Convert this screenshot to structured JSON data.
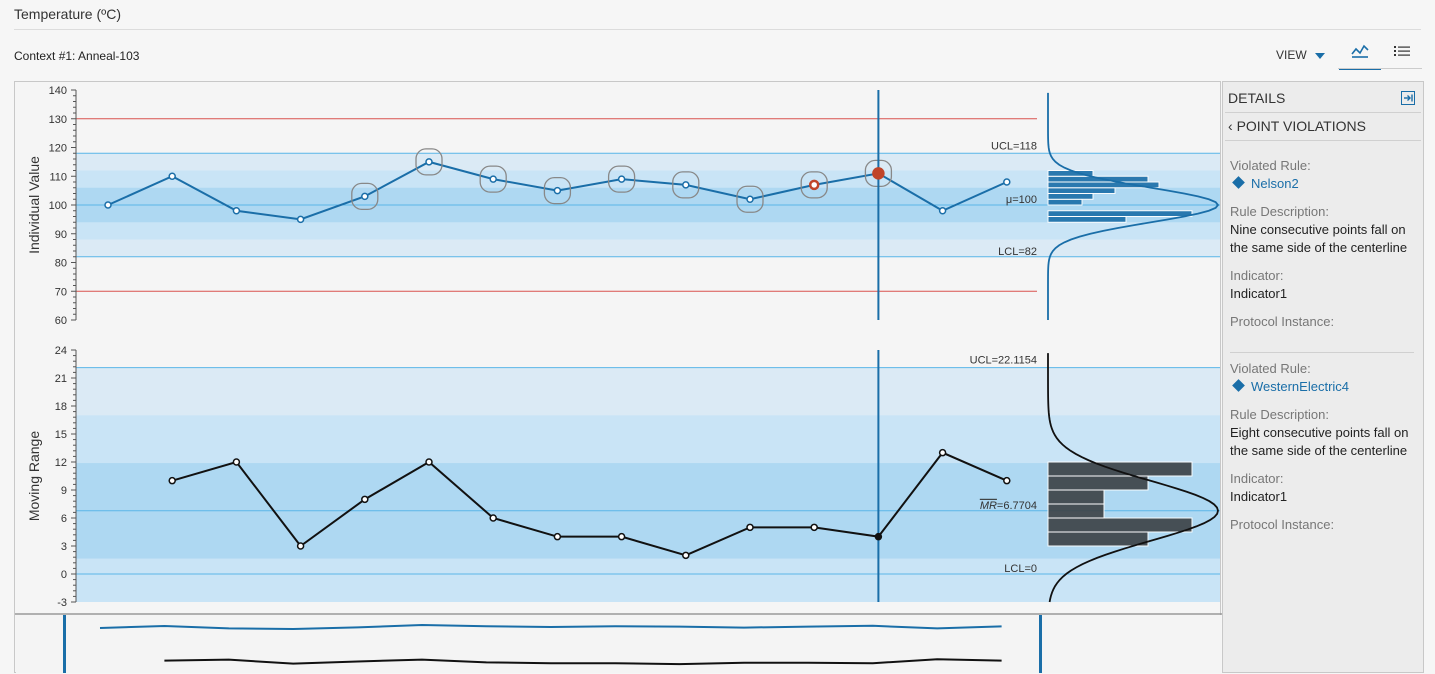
{
  "header": {
    "title": "Temperature (ºC)",
    "context": "Context #1: Anneal-103"
  },
  "toolbar": {
    "view_label": "VIEW",
    "chart_icon": "control-chart-icon",
    "list_icon": "list-icon"
  },
  "colors": {
    "accent": "#1a6ea8",
    "band_dark": "#aed8f2",
    "band_mid": "#c9e4f6",
    "band_light": "#dbeaf5",
    "line_light": "#5bb6e8",
    "spec_limit": "#d9534f",
    "violation": "#c0452a",
    "mr_hist": "#3b4145"
  },
  "details": {
    "title": "DETAILS",
    "back_label": "POINT VIOLATIONS",
    "violations": [
      {
        "violated_rule_label": "Violated Rule:",
        "rule": "Nelson2",
        "description_label": "Rule Description:",
        "description": "Nine consecutive points fall on the same side of the centerline",
        "indicator_label": "Indicator:",
        "indicator": "Indicator1",
        "protocol_label": "Protocol Instance:"
      },
      {
        "violated_rule_label": "Violated Rule:",
        "rule": "WesternElectric4",
        "description_label": "Rule Description:",
        "description": "Eight consecutive points fall on the same side of the centerline",
        "indicator_label": "Indicator:",
        "indicator": "Indicator1",
        "protocol_label": "Protocol Instance:"
      }
    ]
  },
  "chart_data": [
    {
      "type": "line",
      "ylabel": "Individual Value",
      "ylim": [
        60,
        140
      ],
      "yticks": [
        60,
        70,
        80,
        90,
        100,
        110,
        120,
        130,
        140
      ],
      "values": [
        100,
        110,
        98,
        95,
        103,
        115,
        109,
        105,
        109,
        107,
        102,
        107,
        111,
        98,
        108
      ],
      "violation_points": [
        4,
        5,
        6,
        7,
        8,
        9,
        10,
        11,
        12
      ],
      "highlighted_points": [
        11,
        12
      ],
      "selected_index": 12,
      "ucl": 118,
      "center": 100,
      "lcl": 82,
      "spec_upper": 130,
      "spec_lower": 70,
      "ucl_label": "UCL=118",
      "center_label": "μ=100",
      "lcl_label": "LCL=82",
      "hist_bins": [
        {
          "range": [
            94,
            96
          ],
          "count": 6
        },
        {
          "range": [
            96,
            98
          ],
          "count": 12
        },
        {
          "range": [
            100,
            102
          ],
          "count": 2
        },
        {
          "range": [
            102,
            104
          ],
          "count": 3
        },
        {
          "range": [
            104,
            106
          ],
          "count": 5
        },
        {
          "range": [
            106,
            108
          ],
          "count": 9
        },
        {
          "range": [
            108,
            110
          ],
          "count": 8
        },
        {
          "range": [
            110,
            112
          ],
          "count": 3
        }
      ]
    },
    {
      "type": "line",
      "ylabel": "Moving Range",
      "ylim": [
        -3,
        24
      ],
      "yticks": [
        -3,
        0,
        3,
        6,
        9,
        12,
        15,
        18,
        21,
        24
      ],
      "values": [
        null,
        10,
        12,
        3,
        8,
        12,
        6,
        4,
        4,
        2,
        5,
        5,
        4,
        13,
        10
      ],
      "selected_index": 12,
      "ucl": 22.1154,
      "center": 6.7704,
      "lcl": 0,
      "ucl_label": "UCL=22.1154",
      "center_label": "=6.7704",
      "center_symbol": "MR",
      "lcl_label": "LCL=0",
      "hist_bins": [
        {
          "range": [
            3,
            4.5
          ],
          "count": 4
        },
        {
          "range": [
            4.5,
            6
          ],
          "count": 6
        },
        {
          "range": [
            6,
            7.5
          ],
          "count": 2
        },
        {
          "range": [
            7.5,
            9
          ],
          "count": 2
        },
        {
          "range": [
            9,
            10.5
          ],
          "count": 4
        },
        {
          "range": [
            10.5,
            12
          ],
          "count": 6
        }
      ]
    }
  ]
}
